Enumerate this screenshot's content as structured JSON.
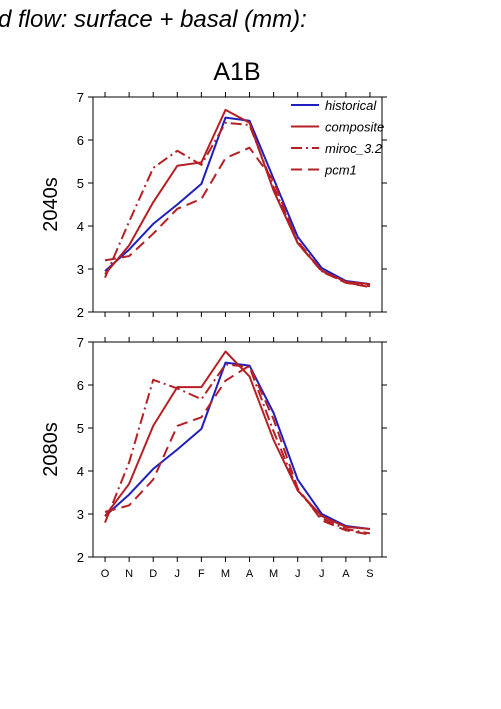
{
  "figure": {
    "header": "d flow: surface + basal (mm):",
    "scenario": "A1B"
  },
  "chart_data": [
    {
      "type": "line",
      "ylabel": "2040s",
      "ylim": [
        2,
        7
      ],
      "yticks": [
        "2",
        "3",
        "4",
        "5",
        "6",
        "7"
      ],
      "categories": [
        "O",
        "N",
        "D",
        "J",
        "F",
        "M",
        "A",
        "M",
        "J",
        "J",
        "A",
        "S"
      ],
      "legend_position": "top-right",
      "series": [
        {
          "name": "historical",
          "color": "#1f1fbf",
          "dash": "solid",
          "values": [
            2.95,
            3.45,
            4.05,
            4.5,
            4.98,
            6.52,
            6.45,
            5.1,
            3.75,
            3.02,
            2.72,
            2.65
          ]
        },
        {
          "name": "composite",
          "color": "#b52025",
          "dash": "solid",
          "values": [
            2.88,
            3.55,
            4.55,
            5.4,
            5.48,
            6.7,
            6.4,
            4.82,
            3.6,
            2.96,
            2.7,
            2.65
          ]
        },
        {
          "name": "miroc_3.2",
          "color": "#b52025",
          "dash": "dashdot",
          "values": [
            2.8,
            4.1,
            5.35,
            5.75,
            5.42,
            6.4,
            6.35,
            4.9,
            3.65,
            2.95,
            2.68,
            2.6
          ]
        },
        {
          "name": "pcm1",
          "color": "#b52025",
          "dash": "dash",
          "values": [
            3.2,
            3.3,
            3.82,
            4.4,
            4.63,
            5.58,
            5.82,
            5.05,
            3.6,
            2.94,
            2.68,
            2.58
          ]
        }
      ]
    },
    {
      "type": "line",
      "ylabel": "2080s",
      "ylim": [
        2,
        7
      ],
      "yticks": [
        "2",
        "3",
        "4",
        "5",
        "6",
        "7"
      ],
      "categories": [
        "O",
        "N",
        "D",
        "J",
        "F",
        "M",
        "A",
        "M",
        "J",
        "J",
        "A",
        "S"
      ],
      "series": [
        {
          "name": "historical",
          "color": "#1f1fbf",
          "dash": "solid",
          "values": [
            2.95,
            3.45,
            4.05,
            4.5,
            4.98,
            6.52,
            6.45,
            5.35,
            3.8,
            3.0,
            2.72,
            2.65
          ]
        },
        {
          "name": "composite",
          "color": "#b52025",
          "dash": "solid",
          "values": [
            2.95,
            3.7,
            5.05,
            5.95,
            5.95,
            6.78,
            6.2,
            4.72,
            3.55,
            2.95,
            2.7,
            2.65
          ]
        },
        {
          "name": "miroc_3.2",
          "color": "#b52025",
          "dash": "dashdot",
          "values": [
            2.8,
            4.2,
            6.12,
            5.92,
            5.67,
            6.48,
            6.42,
            4.92,
            3.55,
            2.9,
            2.65,
            2.55
          ]
        },
        {
          "name": "pcm1",
          "color": "#b52025",
          "dash": "dash",
          "values": [
            3.05,
            3.2,
            3.8,
            5.05,
            5.25,
            6.1,
            6.45,
            5.2,
            3.6,
            2.85,
            2.62,
            2.52
          ]
        }
      ]
    }
  ]
}
